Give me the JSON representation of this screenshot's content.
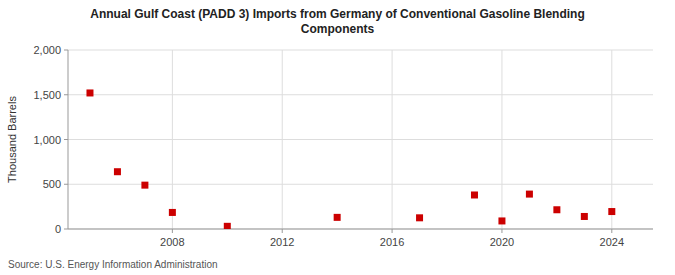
{
  "chart_data": {
    "type": "scatter",
    "title": "Annual Gulf Coast (PADD 3) Imports from Germany of Conventional Gasoline Blending\nComponents",
    "y_label": "Thousand Barrels",
    "annotations": [
      "Source: U.S. Energy Information Administration"
    ],
    "x": [
      2005,
      2006,
      2007,
      2008,
      2010,
      2014,
      2017,
      2019,
      2020,
      2021,
      2022,
      2023,
      2024
    ],
    "values": [
      1520,
      640,
      490,
      185,
      30,
      130,
      125,
      380,
      90,
      390,
      215,
      140,
      195
    ],
    "color": "#cc0000",
    "marker": "square",
    "xlim": [
      2004.2,
      2025.5
    ],
    "xticks": [
      2008,
      2012,
      2016,
      2020,
      2024
    ],
    "ylim": [
      0,
      2000
    ],
    "yticks": [
      0,
      500,
      {
        "value": 1000,
        "label": "1,000"
      },
      {
        "value": 1500,
        "label": "1,500"
      },
      {
        "value": 2000,
        "label": "2,000"
      }
    ],
    "grid": true
  }
}
